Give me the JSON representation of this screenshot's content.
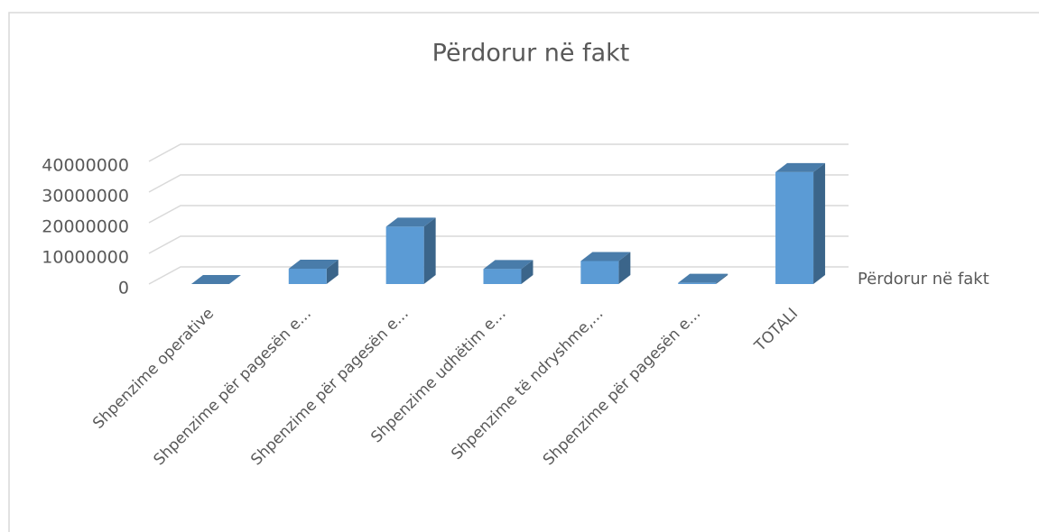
{
  "chart_data": {
    "type": "bar3d",
    "title": "Përdorur në fakt",
    "categories": [
      "Shpenzime operative",
      "Shpenzime për pagesën e...",
      "Shpenzime për pagesën e...",
      "Shpenzime udhëtim e...",
      "Shpenzime të ndryshme,...",
      "Shpenzime për pagesën e...",
      "TOTALI"
    ],
    "series": [
      {
        "name": "Përdorur në fakt",
        "color": "#5b9bd5",
        "values": [
          0,
          5000000,
          18700000,
          4900000,
          7500000,
          400000,
          36500000
        ]
      }
    ],
    "ylim": [
      0,
      40000000
    ],
    "yticks": [
      0,
      10000000,
      20000000,
      30000000,
      40000000
    ],
    "grid": true,
    "legend": "right"
  }
}
